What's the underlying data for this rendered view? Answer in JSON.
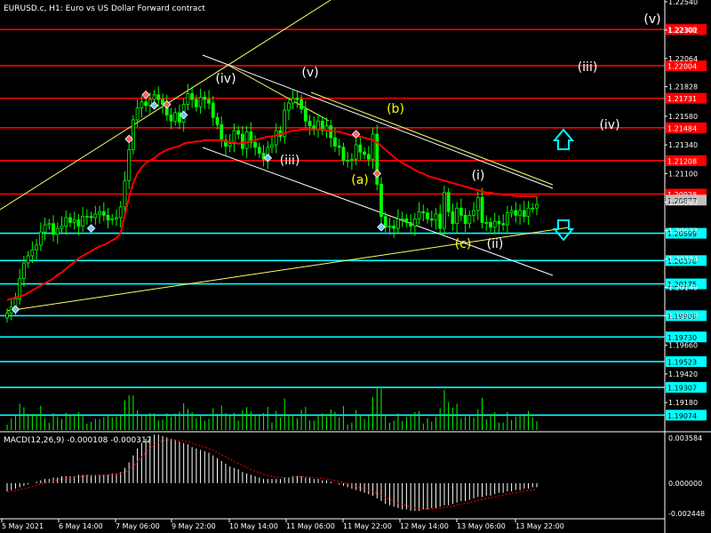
{
  "header": {
    "title": "EURUSD.c, H1:  Euro vs US Dollar Forward contract"
  },
  "macd": {
    "label": "MACD(12,26,9) -0.000108 -0.000312",
    "axis_labels": [
      "0.003584",
      "0.000000",
      "-0.002448"
    ]
  },
  "colors": {
    "background": "#000000",
    "candle": "#00ff00",
    "ma": "#ff0000",
    "resistance": "#ff0000",
    "support": "#00ffff",
    "trend": "#ffff66",
    "channel": "#ffffff",
    "wave_white": "#ffffff",
    "wave_yellow": "#ffff00",
    "axis_text": "#ffffff"
  },
  "chart_data": {
    "type": "candlestick",
    "symbol": "EURUSD.c",
    "timeframe": "H1",
    "ylim": [
      1.1895,
      1.2254
    ],
    "price_ticks": [
      "1.22540",
      "1.22302",
      "1.22064",
      "1.21828",
      "1.21580",
      "1.21340",
      "1.21100",
      "1.20860",
      "1.20622",
      "1.20384",
      "1.20146",
      "1.19908",
      "1.19660",
      "1.19420",
      "1.19180"
    ],
    "x_labels": [
      "5 May 2021",
      "6 May 14:00",
      "7 May 06:00",
      "9 May 22:00",
      "10 May 14:00",
      "11 May 06:00",
      "11 May 22:00",
      "12 May 14:00",
      "13 May 06:00",
      "13 May 22:00"
    ],
    "resistance_levels": [
      "1.22308",
      "1.22004",
      "1.21731",
      "1.21484",
      "1.21208",
      "1.20928"
    ],
    "support_levels": [
      "1.20599",
      "1.20370",
      "1.20175",
      "1.19908",
      "1.19730",
      "1.19523",
      "1.19307",
      "1.19074"
    ],
    "current_price": "1.20877",
    "wave_labels": [
      {
        "text": "(v)",
        "style": "white"
      },
      {
        "text": "(iii)",
        "style": "white"
      },
      {
        "text": "(v)",
        "style": "white"
      },
      {
        "text": "(iv)",
        "style": "white"
      },
      {
        "text": "(iii)",
        "style": "white"
      },
      {
        "text": "(iv)",
        "style": "white"
      },
      {
        "text": "(b)",
        "style": "yellow"
      },
      {
        "text": "(a)",
        "style": "yellow"
      },
      {
        "text": "(i)",
        "style": "white"
      },
      {
        "text": "(c)",
        "style": "yellow"
      },
      {
        "text": "(ii)",
        "style": "white"
      }
    ],
    "closes": [
      1.1993,
      1.1998,
      1.2005,
      1.2022,
      1.2035,
      1.2041,
      1.2046,
      1.205,
      1.2061,
      1.2067,
      1.2068,
      1.2059,
      1.2064,
      1.2066,
      1.2073,
      1.2069,
      1.2071,
      1.2066,
      1.2074,
      1.2074,
      1.2073,
      1.2076,
      1.2078,
      1.2075,
      1.2071,
      1.2072,
      1.2073,
      1.2082,
      1.2104,
      1.213,
      1.2155,
      1.2165,
      1.217,
      1.2167,
      1.2172,
      1.2176,
      1.2172,
      1.2168,
      1.2159,
      1.2154,
      1.2161,
      1.2153,
      1.2168,
      1.2177,
      1.2172,
      1.2166,
      1.2174,
      1.2172,
      1.2169,
      1.2157,
      1.2151,
      1.2138,
      1.2133,
      1.2135,
      1.2146,
      1.2143,
      1.2131,
      1.2145,
      1.2136,
      1.2132,
      1.2127,
      1.2122,
      1.2132,
      1.2134,
      1.2146,
      1.2141,
      1.2163,
      1.2169,
      1.2173,
      1.2172,
      1.2164,
      1.2154,
      1.215,
      1.2147,
      1.2154,
      1.2146,
      1.215,
      1.214,
      1.2133,
      1.2132,
      1.2121,
      1.2121,
      1.2122,
      1.2134,
      1.2128,
      1.2126,
      1.2122,
      1.2143,
      1.2101,
      1.2074,
      1.2065,
      1.2066,
      1.2064,
      1.2072,
      1.2072,
      1.2069,
      1.2066,
      1.2072,
      1.2078,
      1.2077,
      1.2072,
      1.2071,
      1.2076,
      1.2064,
      1.2094,
      1.2078,
      1.2068,
      1.2081,
      1.2075,
      1.2068,
      1.2075,
      1.2079,
      1.209,
      1.2069,
      1.2069,
      1.2065,
      1.207,
      1.2068,
      1.2067,
      1.2077,
      1.2079,
      1.2075,
      1.2079,
      1.2074,
      1.2081,
      1.2081,
      1.2084
    ],
    "ma_series": [
      1.2004,
      1.2005,
      1.2006,
      1.2007,
      1.2008,
      1.201,
      1.2012,
      1.2014,
      1.2016,
      1.2018,
      1.202,
      1.2022,
      1.2025,
      1.2027,
      1.203,
      1.2033,
      1.2036,
      1.2039,
      1.2041,
      1.2043,
      1.2045,
      1.2047,
      1.2049,
      1.205,
      1.2052,
      1.2054,
      1.2056,
      1.206,
      1.2075,
      1.209,
      1.2102,
      1.211,
      1.2115,
      1.2119,
      1.2121,
      1.2123,
      1.2126,
      1.2128,
      1.213,
      1.2131,
      1.2132,
      1.2133,
      1.2135,
      1.2136,
      1.2136,
      1.2137,
      1.2137,
      1.2138,
      1.2138,
      1.2138,
      1.2138,
      1.2138,
      1.2137,
      1.2136,
      1.2136,
      1.2135,
      1.2136,
      1.2136,
      1.2137,
      1.2138,
      1.2139,
      1.214,
      1.2141,
      1.2141,
      1.2142,
      1.2143,
      1.2144,
      1.2145,
      1.2146,
      1.2146,
      1.2147,
      1.2147,
      1.2147,
      1.2147,
      1.2147,
      1.2147,
      1.2146,
      1.2146,
      1.2145,
      1.2145,
      1.2144,
      1.2143,
      1.2142,
      1.2141,
      1.2141,
      1.214,
      1.2139,
      1.2138,
      1.2136,
      1.2133,
      1.213,
      1.2127,
      1.2124,
      1.2121,
      1.2119,
      1.2117,
      1.2115,
      1.2113,
      1.2111,
      1.211,
      1.2108,
      1.2107,
      1.2106,
      1.2105,
      1.2104,
      1.2103,
      1.2102,
      1.2101,
      1.21,
      1.2099,
      1.2098,
      1.2097,
      1.2096,
      1.2095,
      1.2094,
      1.2094,
      1.2093,
      1.2093,
      1.2092,
      1.2092,
      1.2092,
      1.2091,
      1.2091,
      1.2091,
      1.2091,
      1.2091,
      1.2091
    ],
    "macd_hist": [
      -0.0006,
      -0.0005,
      -0.0004,
      -0.0003,
      -0.0002,
      -0.0001,
      0.0,
      0.0001,
      0.0002,
      0.0003,
      0.0003,
      0.0004,
      0.0004,
      0.0005,
      0.0005,
      0.0005,
      0.0005,
      0.0006,
      0.0006,
      0.0006,
      0.0006,
      0.0006,
      0.0006,
      0.0006,
      0.0006,
      0.0007,
      0.0007,
      0.0008,
      0.0011,
      0.0015,
      0.002,
      0.0025,
      0.0029,
      0.0032,
      0.0034,
      0.0035,
      0.0035,
      0.0034,
      0.0033,
      0.0032,
      0.0031,
      0.003,
      0.0029,
      0.0028,
      0.0026,
      0.0025,
      0.0024,
      0.0023,
      0.0022,
      0.002,
      0.0018,
      0.0016,
      0.0014,
      0.0012,
      0.0011,
      0.001,
      0.0008,
      0.0007,
      0.0006,
      0.0005,
      0.0004,
      0.0003,
      0.0003,
      0.0003,
      0.0003,
      0.0003,
      0.0004,
      0.0004,
      0.0005,
      0.0005,
      0.0005,
      0.0004,
      0.0004,
      0.0003,
      0.0003,
      0.0002,
      0.0002,
      0.0001,
      0.0,
      -0.0001,
      -0.0002,
      -0.0003,
      -0.0004,
      -0.0005,
      -0.0006,
      -0.0007,
      -0.0008,
      -0.0009,
      -0.0011,
      -0.0013,
      -0.0015,
      -0.0016,
      -0.0017,
      -0.0018,
      -0.0019,
      -0.0019,
      -0.002,
      -0.002,
      -0.002,
      -0.0019,
      -0.0019,
      -0.0018,
      -0.0018,
      -0.0017,
      -0.0016,
      -0.0016,
      -0.0015,
      -0.0014,
      -0.0013,
      -0.0013,
      -0.0012,
      -0.0011,
      -0.001,
      -0.001,
      -0.0009,
      -0.0009,
      -0.0008,
      -0.0007,
      -0.0007,
      -0.0006,
      -0.0006,
      -0.0005,
      -0.0005,
      -0.0004,
      -0.0004,
      -0.0003,
      -0.0003
    ],
    "macd_ylim": [
      -0.002448,
      0.003584
    ]
  }
}
